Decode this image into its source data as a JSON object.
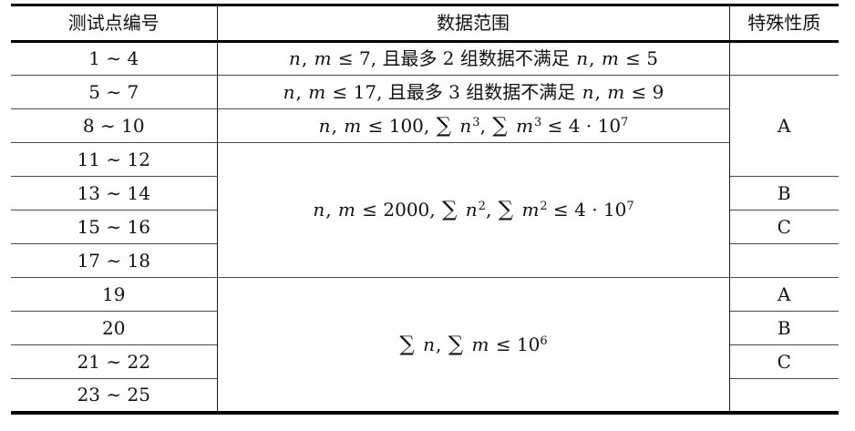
{
  "page": {
    "background_color": "#ffffff",
    "text_color": "#111111",
    "rule_color": "#000000",
    "grid_color": "#4a4a4a"
  },
  "table": {
    "headers": {
      "tests": "测试点编号",
      "range": "数据范围",
      "property": "特殊性质"
    },
    "rows": [
      {
        "tests": "1 ∼ 4",
        "range": "n, m ≤ 7, 且最多 2 组数据不满足 n, m ≤ 5",
        "property": ""
      },
      {
        "tests": "5 ∼ 7",
        "range": "n, m ≤ 17, 且最多 3 组数据不满足 n, m ≤ 9",
        "property": "A"
      },
      {
        "tests": "8 ∼ 10",
        "range": "n, m ≤ 100, ∑ n³, ∑ m³ ≤ 4 · 10⁷"
      },
      {
        "tests": "11 ∼ 12",
        "range": "n, m ≤ 2000, ∑ n², ∑ m² ≤ 4 · 10⁷"
      },
      {
        "tests": "13 ∼ 14",
        "property": "B"
      },
      {
        "tests": "15 ∼ 16",
        "property": "C"
      },
      {
        "tests": "17 ∼ 18",
        "property": ""
      },
      {
        "tests": "19",
        "range": "∑ n, ∑ m ≤ 10⁶",
        "property": "A"
      },
      {
        "tests": "20",
        "property": "B"
      },
      {
        "tests": "21 ∼ 22",
        "property": "C"
      },
      {
        "tests": "23 ∼ 25",
        "property": ""
      }
    ]
  }
}
